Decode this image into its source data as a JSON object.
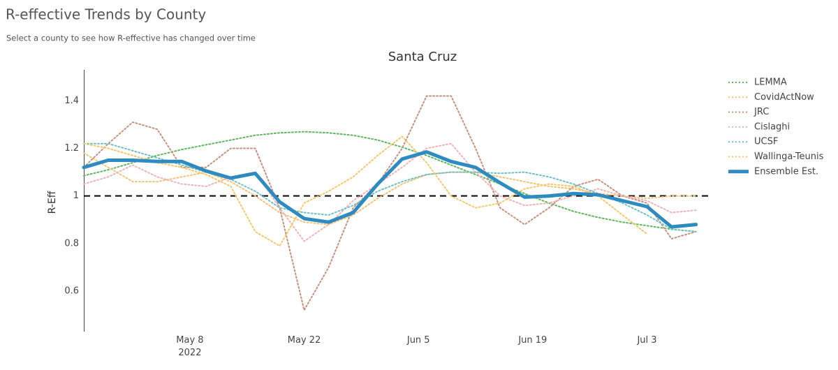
{
  "header": {
    "title": "R-effective Trends by County",
    "subtitle": "Select a county to see how R-effective has changed over time"
  },
  "chart_data": {
    "type": "line",
    "title": "Santa Cruz",
    "y_label": "R-Eff",
    "x": [
      "2022-04-25",
      "2022-04-28",
      "2022-05-01",
      "2022-05-04",
      "2022-05-07",
      "2022-05-10",
      "2022-05-13",
      "2022-05-16",
      "2022-05-19",
      "2022-05-22",
      "2022-05-25",
      "2022-05-28",
      "2022-05-31",
      "2022-06-03",
      "2022-06-06",
      "2022-06-09",
      "2022-06-12",
      "2022-06-15",
      "2022-06-18",
      "2022-06-21",
      "2022-06-24",
      "2022-06-27",
      "2022-06-30",
      "2022-07-03",
      "2022-07-06",
      "2022-07-09"
    ],
    "xlim": [
      "2022-04-25",
      "2022-07-11"
    ],
    "xticks": [
      {
        "value": "2022-05-08",
        "label": "May 8\n2022"
      },
      {
        "value": "2022-05-22",
        "label": "May 22"
      },
      {
        "value": "2022-06-05",
        "label": "Jun 5"
      },
      {
        "value": "2022-06-19",
        "label": "Jun 19"
      },
      {
        "value": "2022-07-03",
        "label": "Jul 3"
      }
    ],
    "ylim": [
      0.43,
      1.53
    ],
    "yticks": [
      0.6,
      0.8,
      1,
      1.2,
      1.4
    ],
    "reference_line": 1,
    "grid": false,
    "legend": "right",
    "series": [
      {
        "name": "LEMMA",
        "color": "#5cb85c",
        "width": 2,
        "dotted": true,
        "values": [
          1.085,
          1.11,
          1.14,
          1.17,
          1.195,
          1.215,
          1.235,
          1.255,
          1.265,
          1.27,
          1.265,
          1.255,
          1.235,
          1.205,
          1.17,
          1.13,
          1.09,
          1.05,
          1.01,
          0.97,
          0.935,
          0.91,
          0.89,
          0.875,
          0.86,
          0.85
        ]
      },
      {
        "name": "CovidActNow",
        "color": "#f3c276",
        "width": 2,
        "dotted": true,
        "values": [
          1.18,
          1.12,
          1.06,
          1.06,
          1.08,
          1.1,
          1.06,
          1.0,
          0.93,
          0.89,
          0.88,
          0.92,
          0.99,
          1.05,
          1.09,
          1.1,
          1.1,
          1.08,
          1.06,
          1.04,
          1.03,
          1.01,
          1.0,
          0.99,
          1.0,
          1.0
        ]
      },
      {
        "name": "JRC",
        "color": "#c8907e",
        "width": 2,
        "dotted": true,
        "values": [
          1.12,
          1.22,
          1.31,
          1.28,
          1.12,
          1.12,
          1.2,
          1.2,
          0.95,
          0.52,
          0.7,
          0.95,
          1.05,
          1.2,
          1.42,
          1.42,
          1.2,
          0.95,
          0.88,
          0.95,
          1.04,
          1.07,
          1.0,
          0.97,
          0.82,
          0.85
        ]
      },
      {
        "name": "Cislaghi",
        "color": "#f1b3b8",
        "width": 2,
        "dotted": true,
        "values": [
          1.05,
          1.08,
          1.13,
          1.08,
          1.05,
          1.04,
          1.08,
          1.1,
          0.95,
          0.81,
          0.88,
          0.98,
          1.05,
          1.12,
          1.2,
          1.22,
          1.1,
          1.0,
          0.96,
          0.97,
          1.0,
          1.03,
          1.0,
          0.98,
          0.93,
          0.94
        ]
      },
      {
        "name": "UCSF",
        "color": "#6cc1c4",
        "width": 2,
        "dotted": true,
        "values": [
          1.22,
          1.22,
          1.19,
          1.16,
          1.13,
          1.1,
          1.07,
          1.02,
          0.95,
          0.93,
          0.92,
          0.96,
          1.02,
          1.06,
          1.09,
          1.1,
          1.1,
          1.095,
          1.1,
          1.08,
          1.05,
          1.01,
          0.97,
          0.92,
          0.86,
          0.85
        ]
      },
      {
        "name": "Wallinga-Teunis",
        "color": "#f8c766",
        "width": 2,
        "dotted": true,
        "values": [
          1.22,
          1.2,
          1.17,
          1.14,
          1.12,
          1.09,
          1.04,
          0.85,
          0.79,
          0.97,
          1.02,
          1.08,
          1.17,
          1.25,
          1.14,
          1.0,
          0.95,
          0.97,
          1.03,
          1.05,
          1.04,
          1.0,
          0.92,
          0.84,
          null,
          null
        ]
      },
      {
        "name": "Ensemble Est.",
        "color": "#2e8bc0",
        "width": 5,
        "dotted": false,
        "values": [
          1.12,
          1.15,
          1.15,
          1.145,
          1.145,
          1.105,
          1.075,
          1.095,
          0.975,
          0.905,
          0.89,
          0.93,
          1.05,
          1.155,
          1.185,
          1.145,
          1.12,
          1.055,
          0.995,
          1.0,
          1.01,
          1.005,
          0.98,
          0.955,
          0.87,
          0.88
        ]
      }
    ]
  }
}
